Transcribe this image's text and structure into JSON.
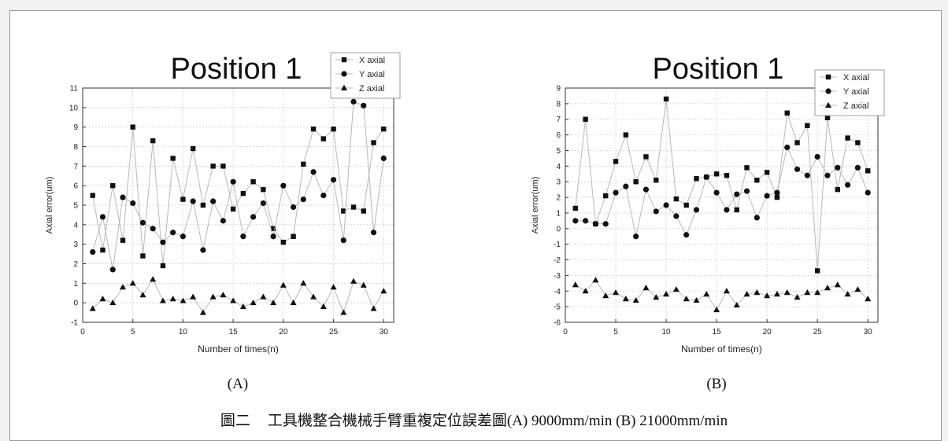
{
  "caption": {
    "figure_number": "圖二",
    "text": "工具機整合機械手臂重複定位誤差圖(A) 9000mm/min (B) 21000mm/min"
  },
  "chart_data": [
    {
      "type": "scatter",
      "panel_label": "(A)",
      "title": "Position 1",
      "xlabel": "Number of times(n)",
      "ylabel": "Axial error(um)",
      "xlim": [
        0,
        31
      ],
      "ylim": [
        -1,
        11
      ],
      "xticks": [
        0,
        5,
        10,
        15,
        20,
        25,
        30
      ],
      "yticks": [
        -1,
        0,
        1,
        2,
        3,
        4,
        5,
        6,
        7,
        8,
        9,
        10,
        11
      ],
      "grid": true,
      "legend_position": "top-right",
      "x": [
        1,
        2,
        3,
        4,
        5,
        6,
        7,
        8,
        9,
        10,
        11,
        12,
        13,
        14,
        15,
        16,
        17,
        18,
        19,
        20,
        21,
        22,
        23,
        24,
        25,
        26,
        27,
        28,
        29,
        30
      ],
      "series": [
        {
          "name": "X axial",
          "marker": "square",
          "values": [
            5.5,
            2.7,
            6.0,
            3.2,
            9.0,
            2.4,
            8.3,
            1.9,
            7.4,
            5.3,
            7.9,
            5.0,
            7.0,
            7.0,
            4.8,
            5.6,
            6.2,
            5.8,
            3.8,
            3.1,
            3.4,
            7.1,
            8.9,
            8.4,
            8.9,
            4.7,
            4.9,
            4.7,
            8.2,
            8.9
          ]
        },
        {
          "name": "Y axial",
          "marker": "circle",
          "values": [
            2.6,
            4.4,
            1.7,
            5.4,
            5.1,
            4.1,
            3.8,
            3.1,
            3.6,
            3.4,
            5.2,
            2.7,
            5.2,
            4.2,
            6.2,
            3.4,
            4.4,
            5.1,
            3.4,
            6.0,
            4.9,
            5.3,
            6.7,
            5.5,
            6.3,
            3.2,
            10.3,
            10.1,
            3.6,
            7.4
          ]
        },
        {
          "name": "Z axial",
          "marker": "triangle",
          "values": [
            -0.3,
            0.2,
            0.0,
            0.8,
            1.0,
            0.4,
            1.2,
            0.1,
            0.2,
            0.1,
            0.3,
            -0.5,
            0.3,
            0.4,
            0.1,
            -0.2,
            0.0,
            0.3,
            0.0,
            0.9,
            0.0,
            1.0,
            0.3,
            -0.2,
            0.8,
            -0.5,
            1.1,
            0.9,
            -0.3,
            0.6
          ]
        }
      ]
    },
    {
      "type": "scatter",
      "panel_label": "(B)",
      "title": "Position 1",
      "xlabel": "Number of times(n)",
      "ylabel": "Axial error(um)",
      "xlim": [
        0,
        31
      ],
      "ylim": [
        -6,
        9
      ],
      "xticks": [
        0,
        5,
        10,
        15,
        20,
        25,
        30
      ],
      "yticks": [
        -6,
        -5,
        -4,
        -3,
        -2,
        -1,
        0,
        1,
        2,
        3,
        4,
        5,
        6,
        7,
        8,
        9
      ],
      "grid": true,
      "legend_position": "top-right",
      "x": [
        1,
        2,
        3,
        4,
        5,
        6,
        7,
        8,
        9,
        10,
        11,
        12,
        13,
        14,
        15,
        16,
        17,
        18,
        19,
        20,
        21,
        22,
        23,
        24,
        25,
        26,
        27,
        28,
        29,
        30
      ],
      "series": [
        {
          "name": "X axial",
          "marker": "square",
          "values": [
            1.3,
            7.0,
            0.3,
            2.1,
            4.3,
            6.0,
            3.0,
            4.6,
            3.1,
            8.3,
            1.9,
            1.5,
            3.2,
            3.3,
            3.5,
            3.4,
            1.2,
            3.9,
            3.1,
            3.6,
            2.0,
            7.4,
            5.5,
            6.6,
            -2.7,
            7.1,
            2.5,
            5.8,
            5.5,
            3.7
          ]
        },
        {
          "name": "Y axial",
          "marker": "circle",
          "values": [
            0.5,
            0.5,
            0.3,
            0.3,
            2.3,
            2.7,
            -0.5,
            2.5,
            1.1,
            1.5,
            0.8,
            -0.4,
            1.2,
            3.3,
            2.3,
            1.2,
            2.2,
            2.4,
            0.7,
            2.1,
            2.3,
            5.2,
            3.8,
            3.4,
            4.6,
            3.4,
            3.9,
            2.8,
            3.9,
            2.3
          ]
        },
        {
          "name": "Z axial",
          "marker": "triangle",
          "values": [
            -3.6,
            -4.0,
            -3.3,
            -4.3,
            -4.1,
            -4.5,
            -4.6,
            -3.8,
            -4.4,
            -4.2,
            -3.9,
            -4.5,
            -4.6,
            -4.2,
            -5.2,
            -4.0,
            -4.9,
            -4.2,
            -4.1,
            -4.3,
            -4.2,
            -4.1,
            -4.4,
            -4.1,
            -4.1,
            -3.8,
            -3.6,
            -4.2,
            -3.9,
            -4.5
          ]
        }
      ]
    }
  ]
}
